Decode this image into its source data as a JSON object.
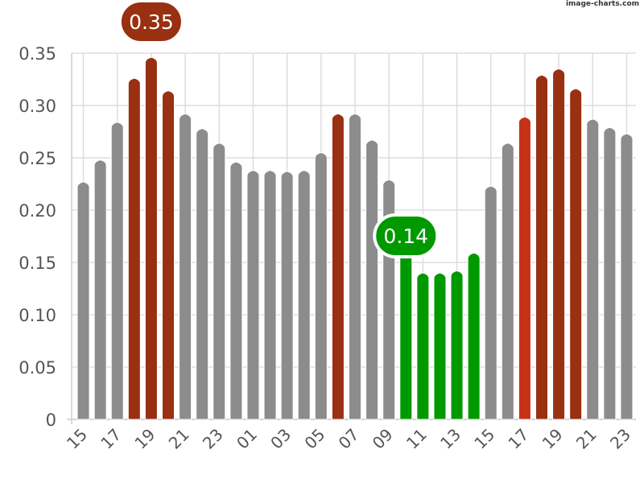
{
  "watermark": "image-charts.com",
  "chart_data": {
    "type": "bar",
    "title": "",
    "xlabel": "",
    "ylabel": "",
    "ylim": [
      0,
      0.35
    ],
    "yticks": [
      "0",
      "0.05",
      "0.10",
      "0.15",
      "0.20",
      "0.25",
      "0.30",
      "0.35"
    ],
    "grid": true,
    "categories": [
      "15",
      "16",
      "17",
      "18",
      "19",
      "20",
      "21",
      "22",
      "23",
      "00",
      "01",
      "02",
      "03",
      "04",
      "05",
      "06",
      "07",
      "08",
      "09",
      "10",
      "11",
      "12",
      "13",
      "14",
      "15",
      "16",
      "17",
      "18",
      "19",
      "20",
      "21",
      "22",
      "23"
    ],
    "xtick_labels": [
      "15",
      "17",
      "19",
      "21",
      "23",
      "01",
      "03",
      "05",
      "07",
      "09",
      "11",
      "13",
      "15",
      "17",
      "19",
      "21",
      "23"
    ],
    "values": [
      0.227,
      0.248,
      0.284,
      0.326,
      0.346,
      0.314,
      0.292,
      0.278,
      0.264,
      0.246,
      0.238,
      0.238,
      0.237,
      0.238,
      0.255,
      0.292,
      0.292,
      0.267,
      0.229,
      0.16,
      0.14,
      0.14,
      0.142,
      0.159,
      0.223,
      0.264,
      0.289,
      0.329,
      0.335,
      0.316,
      0.287,
      0.279,
      0.273
    ],
    "bar_colors": [
      "gray",
      "gray",
      "gray",
      "dark",
      "dark",
      "dark",
      "gray",
      "gray",
      "gray",
      "gray",
      "gray",
      "gray",
      "gray",
      "gray",
      "gray",
      "dark",
      "gray",
      "gray",
      "gray",
      "green",
      "green",
      "green",
      "green",
      "green",
      "gray",
      "gray",
      "red",
      "dark",
      "dark",
      "dark",
      "gray",
      "gray",
      "gray"
    ],
    "colors": {
      "gray": "#8c8c8c",
      "dark": "#993011",
      "red": "#c53217",
      "green": "#009900"
    },
    "annotations": [
      {
        "text": "0.35",
        "bar_index": 4,
        "kind": "max",
        "color": "#993011"
      },
      {
        "text": "0.14",
        "bar_index": 19,
        "kind": "min",
        "color": "#009900"
      }
    ]
  }
}
